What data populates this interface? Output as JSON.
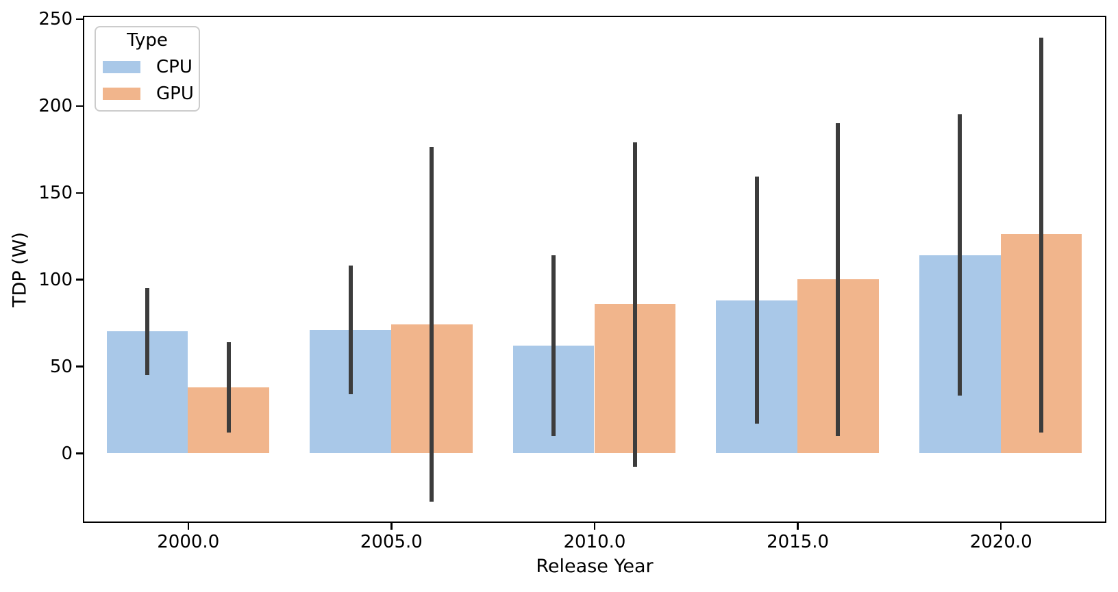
{
  "chart_data": {
    "type": "bar",
    "title": "",
    "xlabel": "Release Year",
    "ylabel": "TDP (W)",
    "categories": [
      2000.0,
      2005.0,
      2010.0,
      2015.0,
      2020.0
    ],
    "x_tick_labels": [
      "2000.0",
      "2005.0",
      "2010.0",
      "2015.0",
      "2020.0"
    ],
    "y_ticks": [
      0,
      50,
      100,
      150,
      200,
      250
    ],
    "ylim": [
      -39,
      251
    ],
    "xlim": [
      1997.45,
      2022.55
    ],
    "bar_width_years": 2,
    "grid": false,
    "legend": {
      "title": "Type",
      "position": "upper-left"
    },
    "error_bar_color": "#3c3c3c",
    "spine_color": "#000000",
    "series": [
      {
        "name": "CPU",
        "color": "#a9c8e8",
        "values": [
          70,
          71,
          62,
          88,
          114
        ],
        "err_low": [
          45,
          34,
          10,
          17,
          33
        ],
        "err_high": [
          95,
          108,
          114,
          159,
          195
        ]
      },
      {
        "name": "GPU",
        "color": "#f1b58c",
        "values": [
          38,
          74,
          86,
          100,
          126
        ],
        "err_low": [
          12,
          -28,
          -8,
          10,
          12
        ],
        "err_high": [
          64,
          176,
          179,
          190,
          239
        ]
      }
    ]
  }
}
